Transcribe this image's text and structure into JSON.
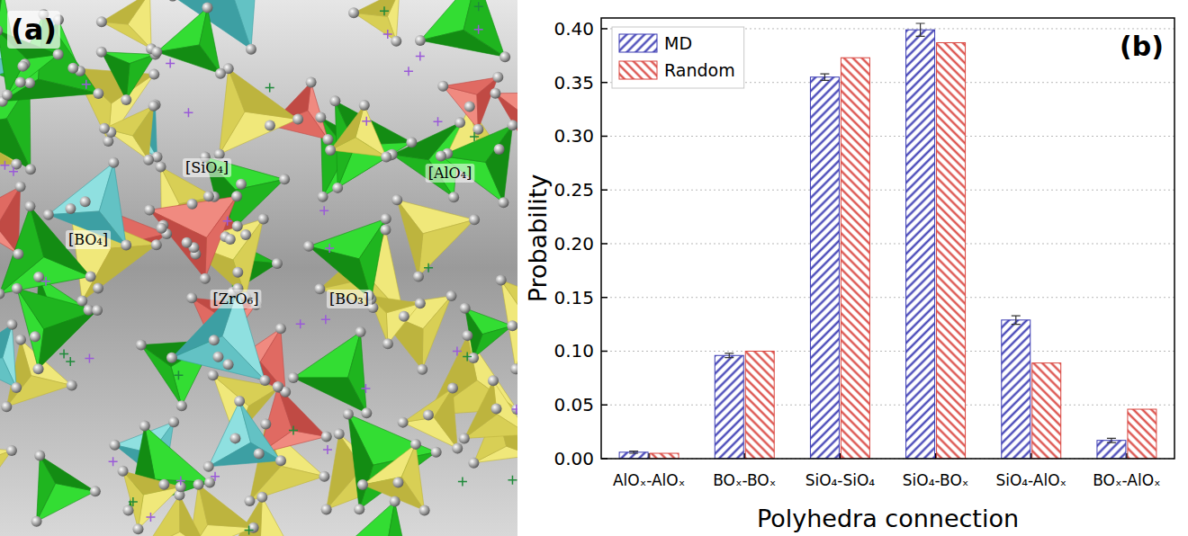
{
  "figure": {
    "panel_a": {
      "letter": "(a)",
      "labels": [
        "[SiO₄]",
        "[AlO₄]",
        "[BO₄]",
        "[ZrO₆]",
        "[BO₃]"
      ]
    },
    "panel_b": {
      "letter": "(b)"
    }
  },
  "chart_data": {
    "type": "bar",
    "x_label": "Polyhedra connection",
    "y_label": "Probability",
    "categories": [
      "AlOₓ-AlOₓ",
      "BOₓ-BOₓ",
      "SiO₄-SiO₄",
      "SiO₄-BOₓ",
      "SiO₄-AlOₓ",
      "BOₓ-AlOₓ"
    ],
    "series": [
      {
        "name": "MD",
        "color": "#3b3bb3",
        "values": [
          0.006,
          0.096,
          0.355,
          0.399,
          0.129,
          0.017
        ],
        "errors": [
          0.001,
          0.002,
          0.003,
          0.006,
          0.004,
          0.002
        ]
      },
      {
        "name": "Random",
        "color": "#d9453f",
        "values": [
          0.005,
          0.1,
          0.373,
          0.387,
          0.089,
          0.046
        ]
      }
    ],
    "ylim": [
      0,
      0.41
    ],
    "yticks": [
      {
        "value": 0,
        "label": "0.00"
      },
      0.05,
      {
        "value": 0.1,
        "label": "0.10"
      },
      0.15,
      {
        "value": 0.2,
        "label": "0.20"
      },
      0.25,
      {
        "value": 0.3,
        "label": "0.30"
      },
      0.35,
      {
        "value": 0.4,
        "label": "0.40"
      }
    ],
    "grid": true,
    "legend": "upper left"
  }
}
